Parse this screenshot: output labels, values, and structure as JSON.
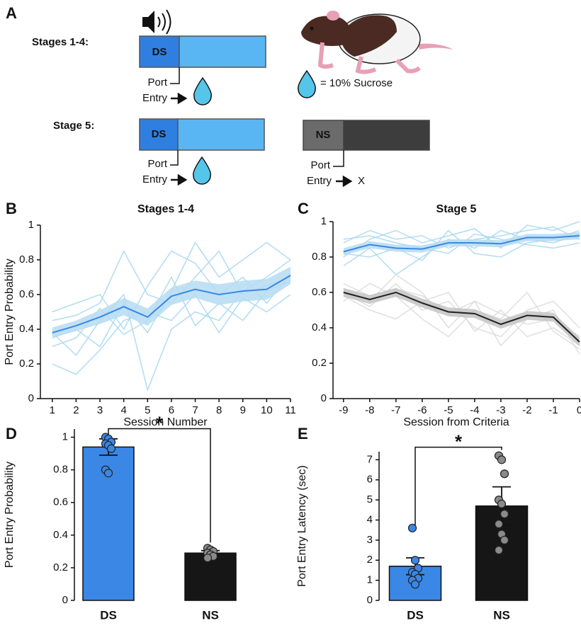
{
  "panel_labels": [
    "A",
    "B",
    "C",
    "D",
    "E"
  ],
  "schematic": {
    "stage_1_4": {
      "label": "Stages 1-4:",
      "cue": "DS",
      "port": "Port",
      "entry": "Entry"
    },
    "legend": "= 10% Sucrose",
    "stage_5": {
      "label": "Stage 5:",
      "ds": {
        "cue": "DS",
        "port": "Port",
        "entry": "Entry"
      },
      "ns": {
        "cue": "NS",
        "port": "Port",
        "entry": "Entry",
        "outcome": "X"
      }
    }
  },
  "chart_data": [
    {
      "type": "line",
      "title": "Stages 1-4",
      "xlabel": "Session Number",
      "ylabel": "Port Entry Probability",
      "x": [
        1,
        2,
        3,
        4,
        5,
        6,
        7,
        8,
        9,
        10,
        11
      ],
      "xlim": [
        0.5,
        11
      ],
      "xticks": [
        1,
        2,
        3,
        4,
        5,
        6,
        7,
        8,
        9,
        10,
        11
      ],
      "ylim": [
        0,
        1
      ],
      "yticks": [
        0,
        0.2,
        0.4,
        0.6,
        0.8,
        1
      ],
      "series": [
        {
          "color": "#3a87e6",
          "band_color": "#b5dcf2",
          "subject_color": "#a9d8f0",
          "values": [
            0.38,
            0.42,
            0.47,
            0.53,
            0.47,
            0.59,
            0.63,
            0.6,
            0.62,
            0.63,
            0.71
          ],
          "errors": [
            0.03,
            0.03,
            0.04,
            0.05,
            0.05,
            0.05,
            0.05,
            0.06,
            0.06,
            0.06,
            0.05
          ],
          "subjects": [
            [
              0.38,
              0.25,
              0.45,
              0.6,
              0.05,
              0.4,
              0.5,
              0.45,
              0.62,
              0.7,
              0.8
            ],
            [
              0.5,
              0.55,
              0.6,
              0.4,
              0.65,
              0.85,
              0.78,
              0.6,
              0.7,
              0.55,
              0.72
            ],
            [
              0.2,
              0.14,
              0.28,
              0.45,
              0.5,
              0.45,
              0.6,
              0.38,
              0.58,
              0.5,
              0.6
            ],
            [
              0.35,
              0.4,
              0.3,
              0.55,
              0.38,
              0.62,
              0.9,
              0.7,
              0.8,
              0.9,
              0.8
            ],
            [
              0.45,
              0.48,
              0.55,
              0.85,
              0.6,
              0.55,
              0.7,
              0.85,
              0.6,
              0.65,
              0.7
            ],
            [
              0.3,
              0.35,
              0.52,
              0.37,
              0.45,
              0.7,
              0.42,
              0.55,
              0.45,
              0.62,
              0.68
            ]
          ]
        }
      ]
    },
    {
      "type": "line",
      "title": "Stage 5",
      "xlabel": "Session from Criteria",
      "x": [
        -9,
        -8,
        -7,
        -6,
        -5,
        -4,
        -3,
        -2,
        -1,
        0
      ],
      "xlim": [
        -9.4,
        0
      ],
      "xticks": [
        -9,
        -8,
        -7,
        -6,
        -5,
        -4,
        -3,
        -2,
        -1,
        0
      ],
      "ylim": [
        0,
        1
      ],
      "yticks": [
        0,
        0.2,
        0.4,
        0.6,
        0.8,
        1
      ],
      "series": [
        {
          "color": "#3a87e6",
          "band_color": "#b5dcf2",
          "subject_color": "#a9d8f0",
          "values": [
            0.83,
            0.87,
            0.85,
            0.845,
            0.88,
            0.88,
            0.875,
            0.91,
            0.91,
            0.92
          ],
          "errors": [
            0.02,
            0.02,
            0.02,
            0.02,
            0.02,
            0.02,
            0.02,
            0.02,
            0.02,
            0.02
          ],
          "subjects": [
            [
              0.8,
              0.9,
              0.95,
              0.88,
              0.92,
              0.96,
              0.85,
              0.98,
              0.95,
              1
            ],
            [
              0.75,
              0.85,
              0.7,
              0.8,
              0.9,
              0.85,
              0.95,
              0.9,
              0.88,
              0.93
            ],
            [
              0.88,
              0.95,
              0.9,
              0.92,
              0.85,
              0.9,
              0.92,
              0.95,
              0.97,
              0.9
            ],
            [
              0.82,
              0.8,
              0.85,
              0.78,
              0.95,
              0.82,
              0.8,
              0.88,
              0.9,
              0.95
            ],
            [
              0.9,
              0.92,
              0.88,
              0.85,
              0.82,
              0.93,
              0.9,
              0.87,
              0.85,
              0.88
            ]
          ]
        },
        {
          "color": "#222222",
          "band_color": "#c4c4c4",
          "subject_color": "#dcdcdc",
          "values": [
            0.6,
            0.56,
            0.6,
            0.54,
            0.49,
            0.48,
            0.42,
            0.47,
            0.46,
            0.32
          ],
          "errors": [
            0.025,
            0.025,
            0.025,
            0.025,
            0.025,
            0.025,
            0.025,
            0.025,
            0.025,
            0.025
          ],
          "subjects": [
            [
              0.62,
              0.55,
              0.7,
              0.6,
              0.4,
              0.55,
              0.3,
              0.45,
              0.5,
              0.25
            ],
            [
              0.58,
              0.5,
              0.45,
              0.55,
              0.6,
              0.38,
              0.5,
              0.35,
              0.4,
              0.3
            ],
            [
              0.55,
              0.65,
              0.58,
              0.45,
              0.35,
              0.5,
              0.45,
              0.6,
              0.38,
              0.28
            ],
            [
              0.6,
              0.52,
              0.65,
              0.5,
              0.55,
              0.4,
              0.35,
              0.5,
              0.55,
              0.4
            ],
            [
              0.65,
              0.58,
              0.62,
              0.58,
              0.48,
              0.55,
              0.48,
              0.42,
              0.45,
              0.35
            ]
          ]
        }
      ]
    },
    {
      "type": "bar",
      "ylabel": "Port Entry Probability",
      "categories": [
        "DS",
        "NS"
      ],
      "values": [
        0.94,
        0.29
      ],
      "errors": [
        0.05,
        0.015
      ],
      "colors": [
        "#3a87e6",
        "#161616"
      ],
      "point_colors": [
        "#3a87e6",
        "#8a8a8a"
      ],
      "points": [
        [
          1,
          0.99,
          0.97,
          0.96,
          0.95,
          0.93,
          0.8,
          0.78
        ],
        [
          0.32,
          0.31,
          0.3,
          0.29,
          0.28,
          0.27,
          0.26
        ]
      ],
      "ylim": [
        0,
        1.05
      ],
      "yticks": [
        0,
        0.2,
        0.4,
        0.6,
        0.8,
        1
      ],
      "annotation": "*"
    },
    {
      "type": "bar",
      "ylabel": "Port Entry Latency (sec)",
      "categories": [
        "DS",
        "NS"
      ],
      "values": [
        1.7,
        4.7
      ],
      "errors": [
        0.42,
        0.95
      ],
      "colors": [
        "#3a87e6",
        "#161616"
      ],
      "point_colors": [
        "#3a87e6",
        "#8a8a8a"
      ],
      "points": [
        [
          3.6,
          2,
          1.6,
          1.4,
          1.3,
          1.1,
          1,
          0.8
        ],
        [
          7.2,
          7,
          6.3,
          5,
          4.8,
          4.3,
          3.8,
          3.3,
          3,
          2.5
        ]
      ],
      "ylim": [
        0,
        7.4
      ],
      "yticks": [
        0,
        1,
        2,
        3,
        4,
        5,
        6,
        7
      ],
      "annotation": "*"
    }
  ]
}
